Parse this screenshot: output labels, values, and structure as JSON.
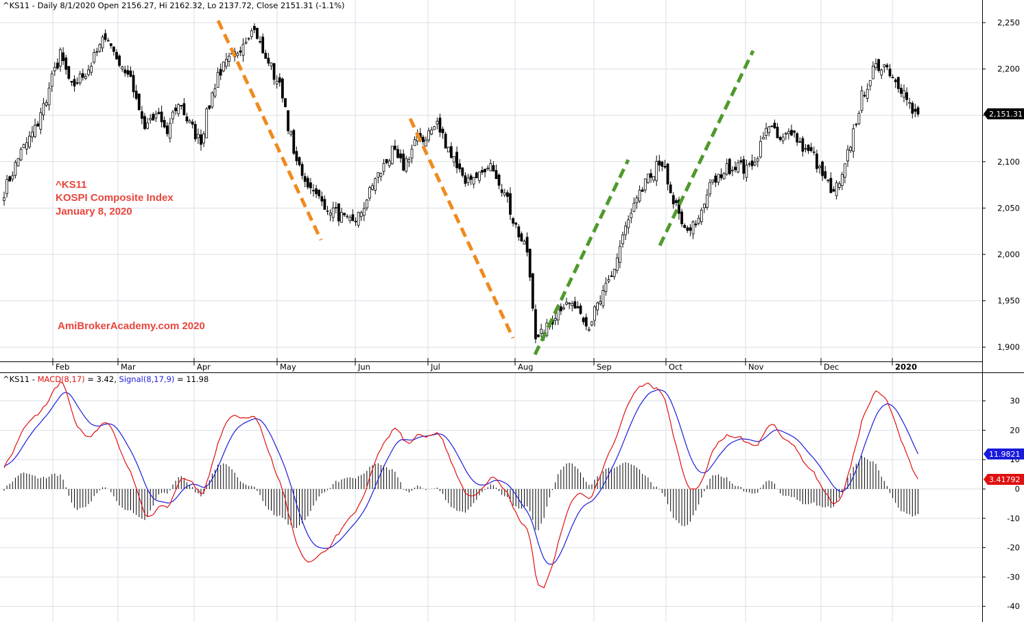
{
  "price_header": "^KS11 - Daily 8/1/2020 Open 2156.27, Hi 2162.32, Lo 2137.72, Close 2151.31 (-1.1%)",
  "macd_header": {
    "prefix": "^KS11 - ",
    "macd": "MACD(8,17)",
    "macd_val": " = 3.42, ",
    "signal": "Signal(8,17,9)",
    "signal_val": " = 11.98"
  },
  "annotations": {
    "ticker": "^KS11",
    "name": "KOSPI Composite Index",
    "date": "January 8, 2020",
    "watermark": "AmiBrokerAcademy.com   2020"
  },
  "badges": {
    "price": "2,151.31",
    "signal": "11.9821",
    "macd": "3.41792"
  },
  "colors": {
    "macd_line": "#e01010",
    "signal_line": "#1a1adc",
    "downtrend": "#f08a1e",
    "uptrend": "#4f9a2c",
    "annotation": "#e8453c"
  },
  "chart_data": [
    {
      "type": "candlestick",
      "series": "^KS11 daily",
      "x_labels": [
        "Feb",
        "Mar",
        "Apr",
        "May",
        "Jun",
        "Jul",
        "Aug",
        "Sep",
        "Oct",
        "Nov",
        "Dec",
        "2020"
      ],
      "y_ticks": [
        1900,
        1950,
        2000,
        2050,
        2100,
        2150,
        2200,
        2250
      ],
      "ylim": [
        1883,
        2268
      ],
      "waypoints": [
        [
          0,
          2068
        ],
        [
          6,
          2110
        ],
        [
          12,
          2140
        ],
        [
          16,
          2180
        ],
        [
          20,
          2215
        ],
        [
          24,
          2180
        ],
        [
          30,
          2200
        ],
        [
          36,
          2235
        ],
        [
          41,
          2210
        ],
        [
          46,
          2180
        ],
        [
          50,
          2138
        ],
        [
          54,
          2152
        ],
        [
          58,
          2130
        ],
        [
          62,
          2165
        ],
        [
          66,
          2140
        ],
        [
          70,
          2120
        ],
        [
          72,
          2150
        ],
        [
          76,
          2195
        ],
        [
          82,
          2215
        ],
        [
          88,
          2245
        ],
        [
          93,
          2215
        ],
        [
          98,
          2180
        ],
        [
          104,
          2100
        ],
        [
          110,
          2065
        ],
        [
          116,
          2050
        ],
        [
          122,
          2035
        ],
        [
          126,
          2040
        ],
        [
          132,
          2080
        ],
        [
          138,
          2110
        ],
        [
          142,
          2095
        ],
        [
          146,
          2120
        ],
        [
          150,
          2128
        ],
        [
          154,
          2140
        ],
        [
          158,
          2115
        ],
        [
          162,
          2090
        ],
        [
          166,
          2075
        ],
        [
          170,
          2085
        ],
        [
          174,
          2095
        ],
        [
          178,
          2065
        ],
        [
          182,
          2030
        ],
        [
          186,
          2000
        ],
        [
          189,
          1915
        ],
        [
          192,
          1915
        ],
        [
          198,
          1945
        ],
        [
          203,
          1948
        ],
        [
          208,
          1925
        ],
        [
          212,
          1950
        ],
        [
          216,
          1975
        ],
        [
          220,
          2020
        ],
        [
          224,
          2050
        ],
        [
          228,
          2075
        ],
        [
          232,
          2095
        ],
        [
          235,
          2090
        ],
        [
          238,
          2060
        ],
        [
          241,
          2030
        ],
        [
          244,
          2025
        ],
        [
          247,
          2040
        ],
        [
          250,
          2068
        ],
        [
          255,
          2088
        ],
        [
          260,
          2098
        ],
        [
          264,
          2090
        ],
        [
          268,
          2110
        ],
        [
          272,
          2140
        ],
        [
          276,
          2120
        ],
        [
          280,
          2135
        ],
        [
          284,
          2115
        ],
        [
          288,
          2105
        ],
        [
          292,
          2080
        ],
        [
          295,
          2068
        ],
        [
          298,
          2082
        ],
        [
          301,
          2120
        ],
        [
          305,
          2170
        ],
        [
          309,
          2198
        ],
        [
          313,
          2205
        ],
        [
          317,
          2190
        ],
        [
          320,
          2175
        ],
        [
          323,
          2152
        ],
        [
          325,
          2151
        ]
      ],
      "last_close": 2151.31
    },
    {
      "type": "macd",
      "macd_label": "MACD(8,17)",
      "signal_label": "Signal(8,17,9)",
      "y_ticks": [
        -40,
        -30,
        -20,
        -10,
        0,
        10,
        20,
        30
      ],
      "ylim": [
        -46,
        39
      ],
      "macd_value": 3.42,
      "signal_value": 11.98
    }
  ]
}
